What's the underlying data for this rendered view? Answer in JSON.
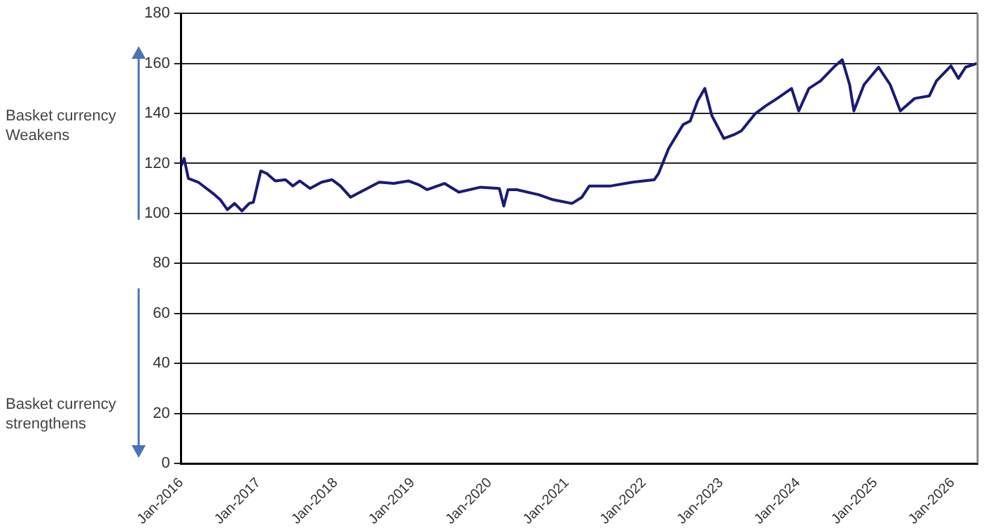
{
  "chart_data": {
    "type": "line",
    "x": [
      "2016-01-01",
      "2016-01-15",
      "2016-02-04",
      "2016-03-22",
      "2016-05-31",
      "2016-07-04",
      "2016-08-07",
      "2016-09-10",
      "2016-10-15",
      "2016-11-18",
      "2016-12-08",
      "2017-01-12",
      "2017-02-09",
      "2017-03-22",
      "2017-05-09",
      "2017-06-13",
      "2017-07-16",
      "2017-09-02",
      "2017-10-27",
      "2017-12-15",
      "2018-01-24",
      "2018-03-13",
      "2018-05-20",
      "2018-07-27",
      "2018-10-04",
      "2018-12-12",
      "2019-01-29",
      "2019-03-11",
      "2019-06-01",
      "2019-08-08",
      "2019-11-19",
      "2020-02-16",
      "2020-03-08",
      "2020-03-28",
      "2020-05-09",
      "2020-08-20",
      "2020-10-27",
      "2021-01-25",
      "2021-03-13",
      "2021-04-17",
      "2021-07-28",
      "2021-11-08",
      "2022-02-19",
      "2022-03-11",
      "2022-04-28",
      "2022-07-05",
      "2022-08-08",
      "2022-09-12",
      "2022-10-16",
      "2022-11-19",
      "2023-01-14",
      "2023-03-03",
      "2023-04-07",
      "2023-06-13",
      "2023-07-31",
      "2023-09-24",
      "2023-12-01",
      "2024-01-04",
      "2024-02-21",
      "2024-04-16",
      "2024-06-24",
      "2024-07-28",
      "2024-09-01",
      "2024-09-21",
      "2024-11-08",
      "2025-01-16",
      "2025-03-12",
      "2025-04-29",
      "2025-07-06",
      "2025-09-13",
      "2025-10-17",
      "2025-12-25",
      "2026-01-29",
      "2026-03-04",
      "2026-04-27"
    ],
    "series": [
      {
        "color": "#1a1a78",
        "values": [
          119,
          122,
          114,
          112.5,
          108,
          105.5,
          101.5,
          104,
          101,
          104,
          104.5,
          117,
          116,
          113,
          113.5,
          111,
          113,
          110,
          112.5,
          113.5,
          111,
          106.5,
          109.5,
          112.5,
          112,
          113,
          111.5,
          109.5,
          112,
          108.5,
          110.5,
          110,
          103,
          109.5,
          109.5,
          107.5,
          105.5,
          104,
          106.5,
          111,
          111,
          112.5,
          113.5,
          116,
          126,
          135.5,
          137,
          145,
          150,
          139,
          130,
          131.5,
          133,
          140,
          143,
          146,
          150,
          141,
          150,
          153,
          159,
          161.5,
          151.5,
          141,
          151.5,
          158.5,
          151.5,
          141,
          146,
          147,
          153,
          159,
          154,
          158.5,
          160
        ]
      }
    ],
    "xlim": [
      "2016-01-01",
      "2026-04-30"
    ],
    "xticks": [
      {
        "value": "2016-01-01",
        "label": "Jan-2016"
      },
      {
        "value": "2017-01-01",
        "label": "Jan-2017"
      },
      {
        "value": "2018-01-01",
        "label": "Jan-2018"
      },
      {
        "value": "2019-01-01",
        "label": "Jan-2019"
      },
      {
        "value": "2020-01-01",
        "label": "Jan-2020"
      },
      {
        "value": "2021-01-01",
        "label": "Jan-2021"
      },
      {
        "value": "2022-01-01",
        "label": "Jan-2022"
      },
      {
        "value": "2023-01-01",
        "label": "Jan-2023"
      },
      {
        "value": "2024-01-01",
        "label": "Jan-2024"
      },
      {
        "value": "2025-01-01",
        "label": "Jan-2025"
      },
      {
        "value": "2026-01-01",
        "label": "Jan-2026"
      }
    ],
    "ylim": [
      0,
      180
    ],
    "yticks": [
      0,
      20,
      40,
      60,
      80,
      100,
      120,
      140,
      160,
      180
    ],
    "grid": "y",
    "legend": false,
    "marker": "none",
    "line_style": "solid",
    "annotations": [
      "Basket currency Weakens",
      "Basket currency strengthens"
    ]
  }
}
